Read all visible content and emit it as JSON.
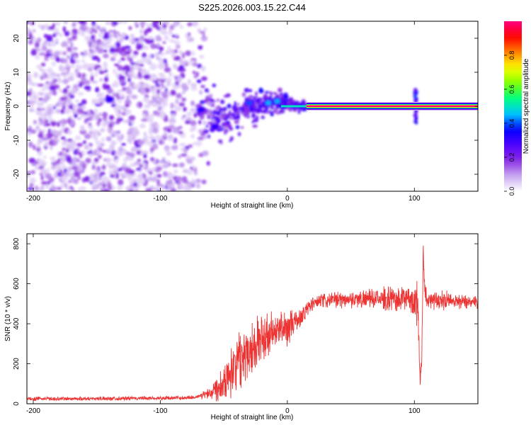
{
  "figure_title": "S225.2026.003.15.22.C44",
  "chart_data": [
    {
      "type": "heatmap",
      "title": "S225.2026.003.15.22.C44",
      "xlabel": "Height of straight line (km)",
      "ylabel": "Frequency (Hz)",
      "xlim": [
        -205,
        150
      ],
      "ylim": [
        -25,
        25
      ],
      "x_ticks": [
        -200,
        -100,
        0,
        100
      ],
      "y_ticks": [
        -20,
        -10,
        0,
        10,
        20
      ],
      "x_tick_labels": [
        "-200",
        "-100",
        "0",
        "100"
      ],
      "y_tick_labels": [
        "-20",
        "-10",
        "0",
        "10",
        "20"
      ],
      "colorbar": {
        "label": "Normalized spectral amplitude",
        "range": [
          0,
          1
        ],
        "ticks": [
          0.0,
          0.2,
          0.4,
          0.6,
          0.8
        ],
        "tick_labels": [
          "0.0",
          "0.2",
          "0.4",
          "0.6",
          "0.8"
        ],
        "colormap": [
          "#ffffff",
          "#c8a8f0",
          "#8a2be2",
          "#5000ff",
          "#0000ff",
          "#00c8ff",
          "#00ff80",
          "#80ff00",
          "#ffff00",
          "#ff8000",
          "#ff0000",
          "#ff0080"
        ]
      },
      "features": {
        "noise_region_km": [
          -205,
          -70
        ],
        "noise_freq_spread_hz": 25,
        "transition_region_km": [
          -70,
          15
        ],
        "carrier_line_km": [
          15,
          150
        ],
        "carrier_freq_hz": 0,
        "carrier_amplitude": 1.0,
        "spike_km": 101,
        "spike_freq_spread_hz": 5,
        "notable_blobs": [
          {
            "x_km": -140,
            "f_hz": 2,
            "amplitude": 0.35
          },
          {
            "x_km": -68,
            "f_hz": -1,
            "amplitude": 0.35
          },
          {
            "x_km": -57,
            "f_hz": -6,
            "amplitude": 0.35
          },
          {
            "x_km": -30,
            "f_hz": 1,
            "amplitude": 0.4
          },
          {
            "x_km": -15,
            "f_hz": 1,
            "amplitude": 0.45
          },
          {
            "x_km": -8,
            "f_hz": 1.5,
            "amplitude": 0.45
          }
        ]
      }
    },
    {
      "type": "line",
      "xlabel": "Height of straight line (km)",
      "ylabel": "SNR (10 * v/v)",
      "xlim": [
        -205,
        150
      ],
      "ylim": [
        0,
        850
      ],
      "x_ticks": [
        -200,
        -100,
        0,
        100
      ],
      "y_ticks": [
        0,
        200,
        400,
        600,
        800
      ],
      "x_tick_labels": [
        "-200",
        "-100",
        "0",
        "100"
      ],
      "y_tick_labels": [
        "0",
        "200",
        "400",
        "600",
        "800"
      ],
      "line_color": "#ee3333",
      "series": [
        {
          "name": "SNR",
          "points": [
            [
              -205,
              25
            ],
            [
              -180,
              25
            ],
            [
              -150,
              26
            ],
            [
              -120,
              27
            ],
            [
              -100,
              28
            ],
            [
              -80,
              30
            ],
            [
              -70,
              35
            ],
            [
              -60,
              60
            ],
            [
              -50,
              110
            ],
            [
              -45,
              160
            ],
            [
              -40,
              210
            ],
            [
              -35,
              240
            ],
            [
              -30,
              280
            ],
            [
              -20,
              320
            ],
            [
              -10,
              355
            ],
            [
              -5,
              370
            ],
            [
              0,
              380
            ],
            [
              5,
              400
            ],
            [
              10,
              430
            ],
            [
              15,
              470
            ],
            [
              20,
              500
            ],
            [
              25,
              510
            ],
            [
              30,
              515
            ],
            [
              40,
              520
            ],
            [
              60,
              525
            ],
            [
              80,
              525
            ],
            [
              90,
              525
            ],
            [
              100,
              520
            ],
            [
              103,
              480
            ],
            [
              104,
              200
            ],
            [
              105,
              100
            ],
            [
              106,
              300
            ],
            [
              107,
              800
            ],
            [
              108,
              560
            ],
            [
              110,
              525
            ],
            [
              130,
              515
            ],
            [
              150,
              510
            ]
          ],
          "noise_amplitude": [
            [
              -205,
              12
            ],
            [
              -70,
              12
            ],
            [
              -60,
              50
            ],
            [
              -40,
              170
            ],
            [
              -30,
              180
            ],
            [
              -20,
              150
            ],
            [
              -5,
              120
            ],
            [
              5,
              80
            ],
            [
              15,
              50
            ],
            [
              30,
              45
            ],
            [
              70,
              55
            ],
            [
              85,
              80
            ],
            [
              95,
              70
            ],
            [
              100,
              100
            ],
            [
              103,
              150
            ],
            [
              110,
              60
            ],
            [
              150,
              40
            ]
          ]
        }
      ]
    }
  ]
}
